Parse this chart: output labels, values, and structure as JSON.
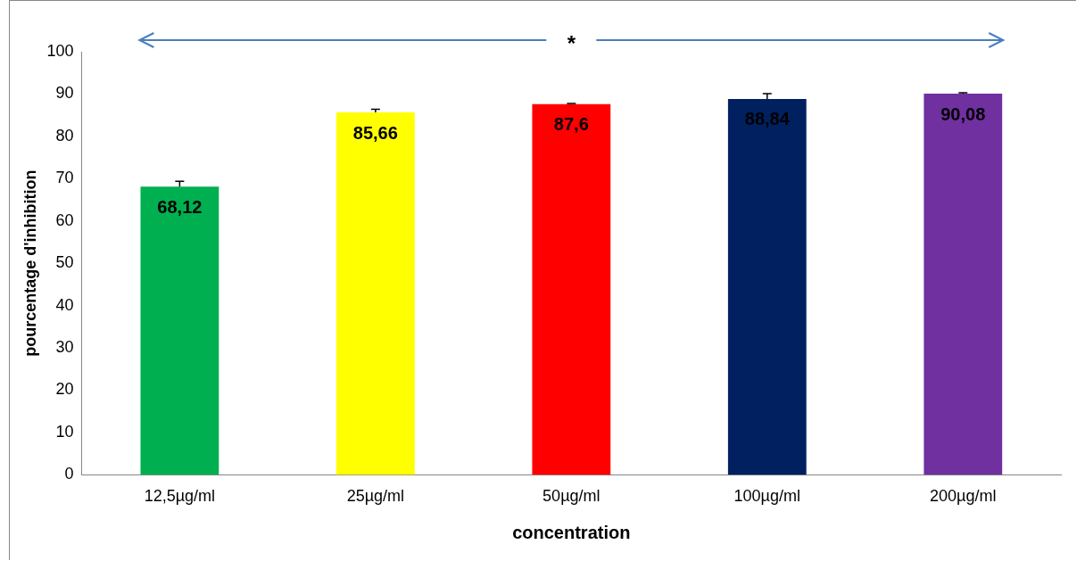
{
  "chart_data": {
    "type": "bar",
    "xlabel": "concentration",
    "ylabel": "pourcentage d'inhibition",
    "categories": [
      "12,5µg/ml",
      "25µg/ml",
      "50µg/ml",
      "100µg/ml",
      "200µg/ml"
    ],
    "values": [
      68.12,
      85.66,
      87.6,
      88.84,
      90.08
    ],
    "colors": [
      "#00b050",
      "#ffff00",
      "#ff0000",
      "#002060",
      "#7030a0"
    ],
    "errors": [
      [
        68.12,
        69.4
      ],
      [
        85.66,
        86.4
      ],
      [
        87.6,
        87.8
      ],
      [
        88.84,
        90.1
      ],
      [
        90.08,
        90.3
      ]
    ],
    "ylim": [
      0,
      100
    ],
    "yticks": [
      0,
      10,
      20,
      30,
      40,
      50,
      60,
      70,
      80,
      90,
      100
    ],
    "value_labels": [
      "68,12",
      "85,66",
      "87,6",
      "88,84",
      "90,08"
    ],
    "grid": false,
    "legend": false,
    "annotations": [
      "*"
    ]
  }
}
